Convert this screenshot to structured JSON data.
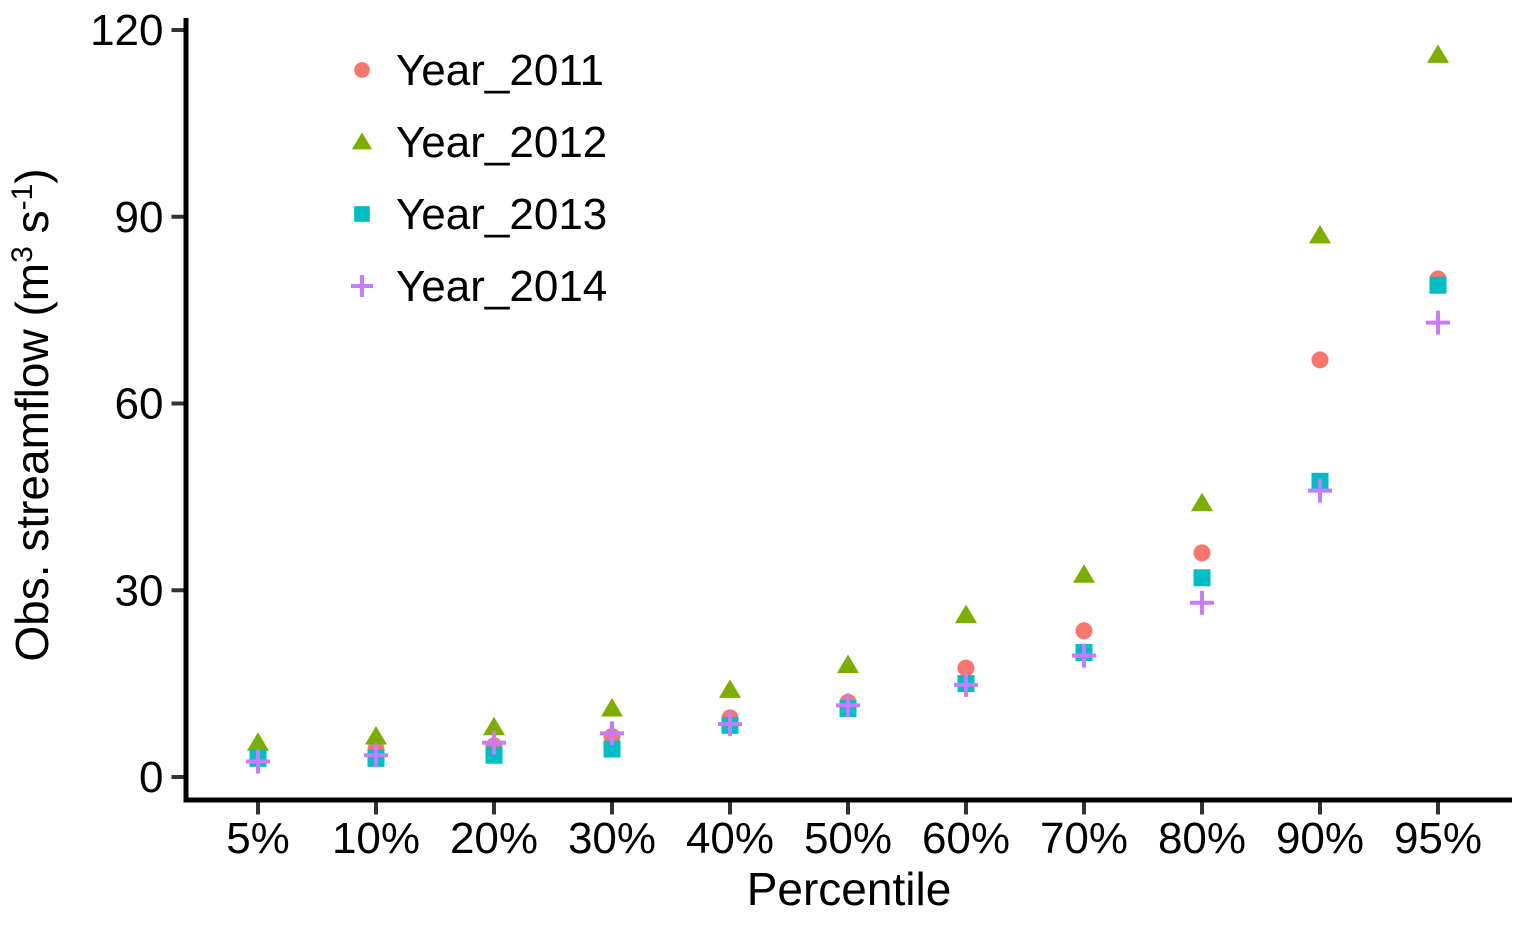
{
  "chart_data": {
    "type": "scatter",
    "title": "",
    "xlabel": "Percentile",
    "ylabel": "Obs. streamflow (m3 s-1)",
    "ylabel_rich": [
      {
        "text": "Obs. streamflow  (m",
        "sup": false
      },
      {
        "text": "3",
        "sup": true
      },
      {
        "text": "  s",
        "sup": false
      },
      {
        "text": "-1",
        "sup": true
      },
      {
        "text": ")",
        "sup": false
      }
    ],
    "categories": [
      "5%",
      "10%",
      "20%",
      "30%",
      "40%",
      "50%",
      "60%",
      "70%",
      "80%",
      "90%",
      "95%"
    ],
    "ylim": [
      0,
      120
    ],
    "yticks": [
      0,
      30,
      60,
      90,
      120
    ],
    "grid": false,
    "legend_position": "top-left-inside",
    "axis_color": "#000000",
    "tick_color": "#333333",
    "series": [
      {
        "name": "Year_2011",
        "marker": "circle",
        "color": "#F8766D",
        "values": [
          3,
          4.5,
          5,
          6.5,
          9.5,
          12,
          17.5,
          23.5,
          36,
          67,
          80
        ]
      },
      {
        "name": "Year_2012",
        "marker": "triangle",
        "color": "#7CAE00",
        "values": [
          5.5,
          6.5,
          8,
          11,
          14,
          18,
          26,
          32.5,
          44,
          87,
          116
        ]
      },
      {
        "name": "Year_2013",
        "marker": "square",
        "color": "#00BFC4",
        "values": [
          3,
          3,
          3.5,
          4.5,
          8.3,
          11,
          15,
          20,
          32,
          47.5,
          79
        ]
      },
      {
        "name": "Year_2014",
        "marker": "plus",
        "color": "#C77CFF",
        "values": [
          2.5,
          3.5,
          5.5,
          7,
          8.5,
          11.5,
          14.8,
          19.5,
          28,
          46,
          73
        ]
      }
    ]
  }
}
